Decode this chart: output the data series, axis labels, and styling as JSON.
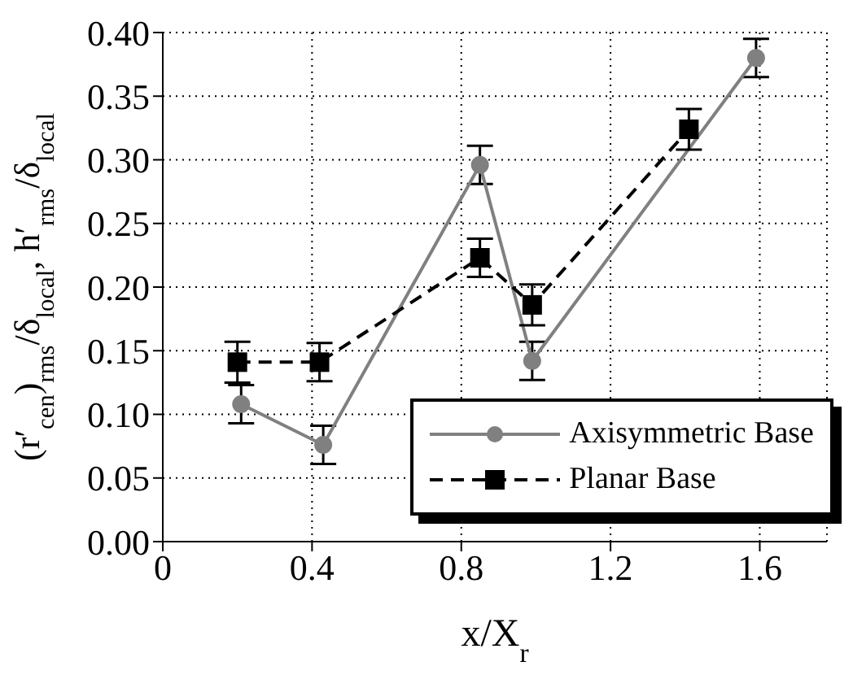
{
  "chart_data": {
    "type": "line",
    "xlabel": "x/X$_{r}$",
    "ylabel": "(r′$_{cen}$)$_{rms}$/δ$_{local}$, h′$_{rms}$/δ$_{local}$",
    "series": [
      {
        "name": "Axisymmetric Base",
        "color": "#808080",
        "marker": "circle",
        "line_style": "solid",
        "x": [
          0.21,
          0.43,
          0.85,
          0.99,
          1.59
        ],
        "values": [
          0.108,
          0.076,
          0.296,
          0.142,
          0.38
        ],
        "errors": [
          0.015,
          0.015,
          0.015,
          0.015,
          0.015
        ]
      },
      {
        "name": "Planar Base",
        "color": "#000000",
        "marker": "square",
        "line_style": "dashed",
        "x": [
          0.2,
          0.42,
          0.85,
          0.99,
          1.41
        ],
        "values": [
          0.141,
          0.141,
          0.223,
          0.186,
          0.324
        ],
        "errors": [
          0.016,
          0.015,
          0.015,
          0.016,
          0.016
        ]
      }
    ],
    "xlim": [
      0,
      1.78
    ],
    "ylim": [
      0,
      0.4
    ],
    "xticks": [
      {
        "value": 0,
        "label": "0"
      },
      0.4,
      0.8,
      1.2,
      1.6
    ],
    "yticks": [
      {
        "value": 0,
        "label": "0.00"
      },
      0.05,
      {
        "value": 0.1,
        "label": "0.10"
      },
      0.15,
      {
        "value": 0.2,
        "label": "0.20"
      },
      0.25,
      {
        "value": 0.3,
        "label": "0.30"
      },
      0.35,
      {
        "value": 0.4,
        "label": "0.40"
      }
    ],
    "grid": true,
    "legend": "bottom right"
  }
}
